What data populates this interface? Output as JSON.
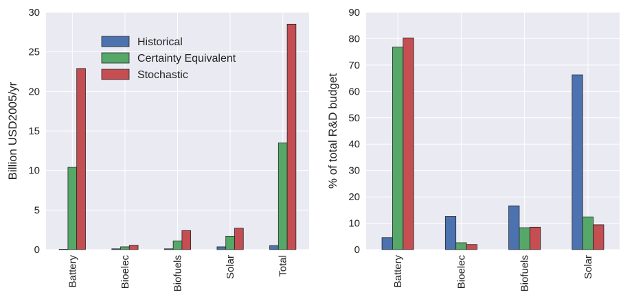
{
  "colors": {
    "plot_bg": "#EAEAF2",
    "grid": "#FFFFFF",
    "historical": "#4C72B0",
    "certainty_equivalent": "#55A868",
    "stochastic": "#C44E52"
  },
  "chart_data": [
    {
      "type": "bar",
      "title": "",
      "xlabel": "",
      "ylabel": "Billion USD2005/yr",
      "categories": [
        "Battery",
        "Bioelec",
        "Biofuels",
        "Solar",
        "Total"
      ],
      "ylim": [
        0,
        30
      ],
      "yticks": [
        0,
        5,
        10,
        15,
        20,
        25,
        30
      ],
      "grid": true,
      "legend": "upper-center",
      "series": [
        {
          "name": "Historical",
          "values": [
            0.02,
            0.1,
            0.1,
            0.35,
            0.5
          ]
        },
        {
          "name": "Certainty Equivalent",
          "values": [
            10.4,
            0.35,
            1.1,
            1.7,
            13.5
          ]
        },
        {
          "name": "Stochastic",
          "values": [
            22.9,
            0.55,
            2.4,
            2.7,
            28.5
          ]
        }
      ]
    },
    {
      "type": "bar",
      "title": "",
      "xlabel": "",
      "ylabel": "% of total R&D budget",
      "categories": [
        "Battery",
        "Bioelec",
        "Biofuels",
        "Solar"
      ],
      "ylim": [
        0,
        90
      ],
      "yticks": [
        0,
        10,
        20,
        30,
        40,
        50,
        60,
        70,
        80,
        90
      ],
      "grid": true,
      "legend": "none",
      "series": [
        {
          "name": "Historical",
          "values": [
            4.5,
            12.6,
            16.6,
            66.3
          ]
        },
        {
          "name": "Certainty Equivalent",
          "values": [
            76.8,
            2.6,
            8.3,
            12.4
          ]
        },
        {
          "name": "Stochastic",
          "values": [
            80.3,
            1.9,
            8.5,
            9.4
          ]
        }
      ]
    }
  ]
}
